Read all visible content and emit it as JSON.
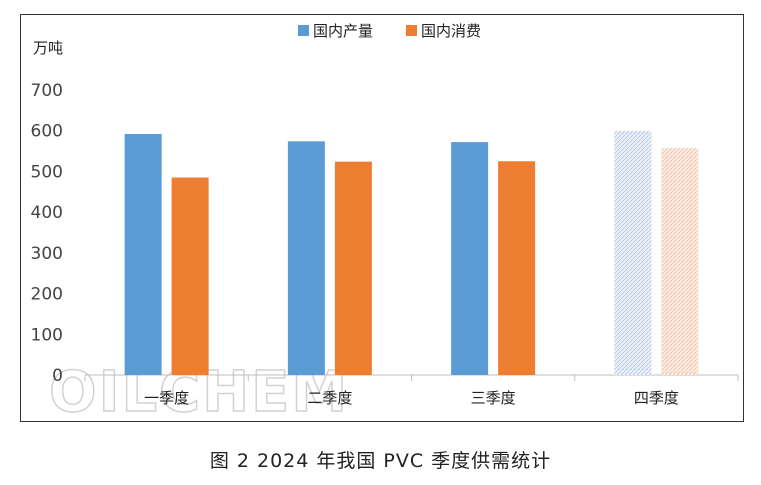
{
  "chart_data": {
    "type": "bar",
    "title": "",
    "ylabel": "万吨",
    "xlabel": "",
    "categories": [
      "一季度",
      "二季度",
      "三季度",
      "四季度"
    ],
    "series": [
      {
        "name": "国内产量",
        "values": [
          592,
          574,
          572,
          600
        ],
        "color": "#5b9bd5"
      },
      {
        "name": "国内消费",
        "values": [
          485,
          524,
          525,
          557
        ],
        "color": "#ed7d31"
      }
    ],
    "forecast_categories": [
      "四季度"
    ],
    "ylim": [
      0,
      700
    ],
    "yticks": [
      0,
      100,
      200,
      300,
      400,
      500,
      600,
      700
    ],
    "grid": false,
    "legend": "top-center"
  },
  "watermark": "OILCHEM",
  "caption": "图 2  2024 年我国 PVC 季度供需统计"
}
